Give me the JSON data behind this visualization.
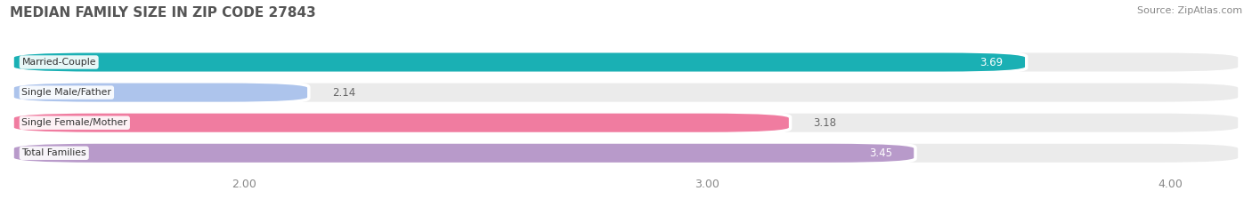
{
  "title": "MEDIAN FAMILY SIZE IN ZIP CODE 27843",
  "source": "Source: ZipAtlas.com",
  "categories": [
    "Married-Couple",
    "Single Male/Father",
    "Single Female/Mother",
    "Total Families"
  ],
  "values": [
    3.69,
    2.14,
    3.18,
    3.45
  ],
  "bar_colors": [
    "#1ab0b4",
    "#adc4ec",
    "#f07ca0",
    "#b89aca"
  ],
  "label_colors": [
    "#ffffff",
    "#666666",
    "#666666",
    "#ffffff"
  ],
  "value_inside": [
    true,
    false,
    false,
    true
  ],
  "background_color": "#ffffff",
  "bar_background_color": "#ebebeb",
  "xlim": [
    1.5,
    4.15
  ],
  "xticks": [
    2.0,
    3.0,
    4.0
  ],
  "xtick_labels": [
    "2.00",
    "3.00",
    "4.00"
  ],
  "figsize": [
    14.06,
    2.33
  ],
  "dpi": 100
}
